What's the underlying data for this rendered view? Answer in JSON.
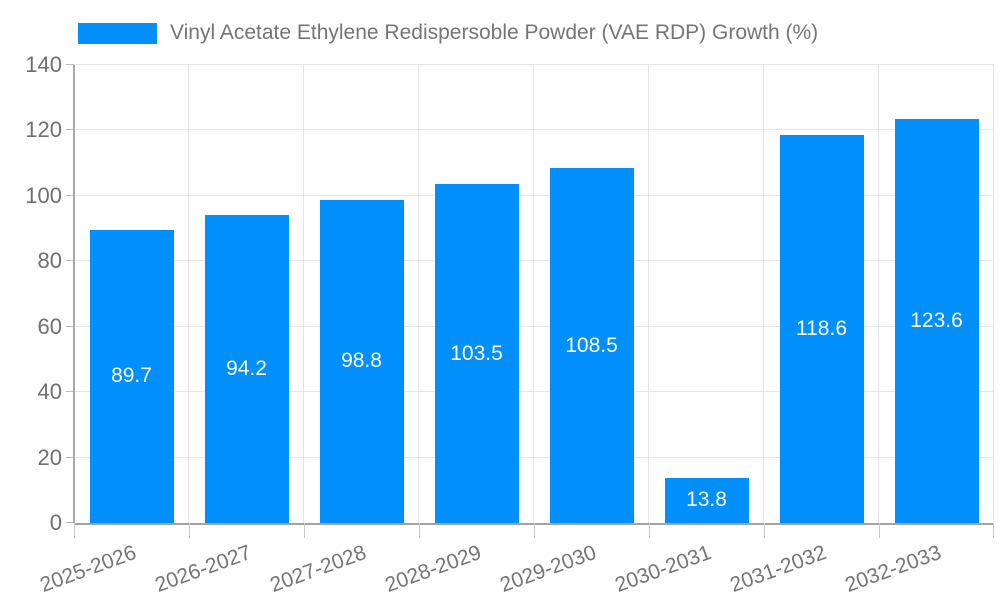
{
  "chart_data": {
    "type": "bar",
    "title": "",
    "legend": "Vinyl Acetate Ethylene Redispersoble Powder (VAE RDP) Growth (%)",
    "legend_position": "top-left",
    "categories": [
      "2025-2026",
      "2026-2027",
      "2027-2028",
      "2028-2029",
      "2029-2030",
      "2030-2031",
      "2031-2032",
      "2032-2033"
    ],
    "series": [
      {
        "name": "Vinyl Acetate Ethylene Redispersoble Powder (VAE RDP) Growth (%)",
        "values": [
          89.7,
          94.2,
          98.8,
          103.5,
          108.5,
          13.8,
          118.6,
          123.6
        ]
      }
    ],
    "value_labels": [
      "89.7",
      "94.2",
      "98.8",
      "103.5",
      "108.5",
      "13.8",
      "118.6",
      "123.6"
    ],
    "xlabel": "",
    "ylabel": "",
    "ylim": [
      0,
      140
    ],
    "y_ticks": [
      0,
      20,
      40,
      60,
      80,
      100,
      120,
      140
    ],
    "grid": true,
    "x_label_rotation_deg": -20,
    "colors": {
      "bar": "#008ffb",
      "value_label": "#ffffff",
      "axis_text": "#757575",
      "gridline": "#e6e6e6",
      "axis_line": "#a3a3a3"
    }
  }
}
